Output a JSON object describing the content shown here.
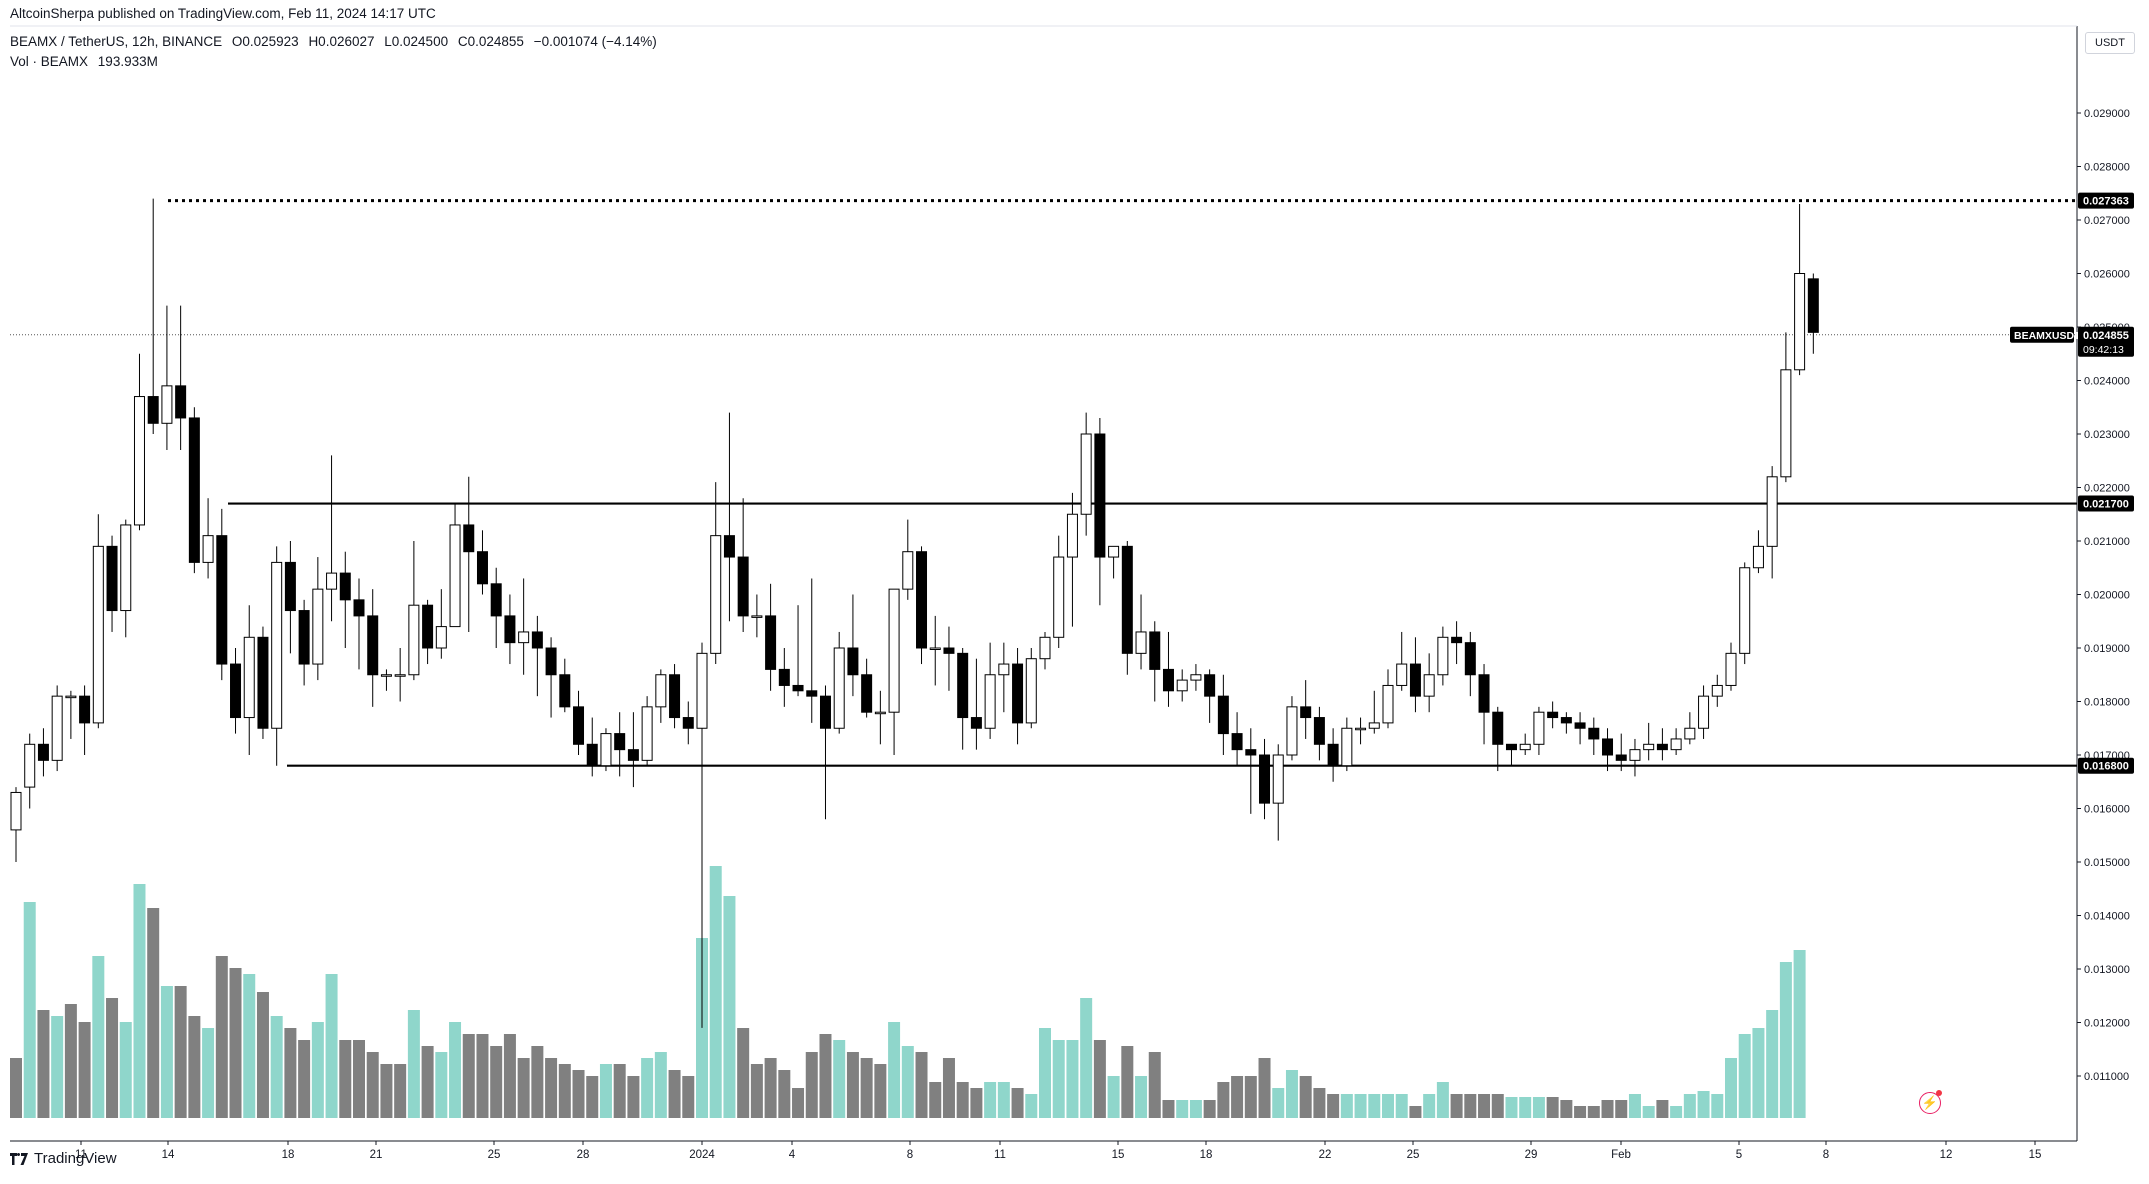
{
  "header": {
    "published_by": "AltcoinSherpa published on TradingView.com, Feb 11, 2024 14:17 UTC",
    "symbol": "BEAMX / TetherUS, 12h, BINANCE",
    "open": "O0.025923",
    "high": "H0.026027",
    "low": "L0.024500",
    "close": "C0.024855",
    "change": "−0.001074 (−4.14%)",
    "volume_label": "Vol · BEAMX",
    "volume_value": "193.933M"
  },
  "currency": "USDT",
  "brand": "TradingView",
  "icons": [
    "tradingview-logo-icon",
    "lightning-icon"
  ],
  "colors": {
    "up_body": "#ffffff",
    "down_body": "#000000",
    "wick": "#000000",
    "vol_up": "#8fd6cb",
    "vol_down": "#808080",
    "level_line": "#000000",
    "price_tag_bg": "#000000"
  },
  "chart_data": {
    "type": "candlestick",
    "title": "BEAMX / TetherUS, 12h, BINANCE",
    "y_ticks": [
      "0.029000",
      "0.028000",
      "0.027000",
      "0.026000",
      "0.025000",
      "0.024000",
      "0.023000",
      "0.022000",
      "0.021000",
      "0.020000",
      "0.019000",
      "0.018000",
      "0.017000",
      "0.016000",
      "0.015000",
      "0.014000",
      "0.013000",
      "0.012000",
      "0.011000"
    ],
    "x_ticks": [
      "11",
      "14",
      "18",
      "21",
      "25",
      "28",
      "2024",
      "4",
      "8",
      "11",
      "15",
      "18",
      "22",
      "25",
      "29",
      "Feb",
      "5",
      "8",
      "12",
      "15"
    ],
    "ylim": [
      0.01045,
      0.0304
    ],
    "levels": [
      {
        "label": "0.027363",
        "value": 0.027363,
        "style": "dotted"
      },
      {
        "label": "0.021700",
        "value": 0.0217,
        "style": "solid"
      },
      {
        "label": "0.016800",
        "value": 0.0168,
        "style": "solid"
      }
    ],
    "last_price": {
      "symbol": "BEAMXUSDT",
      "price": "0.024855",
      "countdown": "09:42:13",
      "value": 0.024855
    },
    "candles": [
      [
        0.0156,
        0.0163,
        0.015,
        0.0164,
        1.0
      ],
      [
        0.0164,
        0.0172,
        0.016,
        0.0174,
        3.6
      ],
      [
        0.0172,
        0.0169,
        0.0166,
        0.0175,
        1.8
      ],
      [
        0.0169,
        0.0181,
        0.0167,
        0.0183,
        1.7
      ],
      [
        0.0181,
        0.0181,
        0.0173,
        0.0182,
        1.9
      ],
      [
        0.0181,
        0.0176,
        0.017,
        0.0183,
        1.6
      ],
      [
        0.0176,
        0.0209,
        0.0175,
        0.0215,
        2.7
      ],
      [
        0.0209,
        0.0197,
        0.0193,
        0.0211,
        2.0
      ],
      [
        0.0197,
        0.0213,
        0.0192,
        0.0214,
        1.6
      ],
      [
        0.0213,
        0.0237,
        0.0212,
        0.0245,
        3.9
      ],
      [
        0.0237,
        0.0232,
        0.023,
        0.0274,
        3.5
      ],
      [
        0.0232,
        0.0239,
        0.0227,
        0.0254,
        2.2
      ],
      [
        0.0239,
        0.0233,
        0.0227,
        0.0254,
        2.2
      ],
      [
        0.0233,
        0.0206,
        0.0204,
        0.0235,
        1.7
      ],
      [
        0.0206,
        0.0211,
        0.0203,
        0.0218,
        1.5
      ],
      [
        0.0211,
        0.0187,
        0.0184,
        0.0216,
        2.7
      ],
      [
        0.0187,
        0.0177,
        0.0174,
        0.019,
        2.5
      ],
      [
        0.0177,
        0.0192,
        0.017,
        0.0198,
        2.4
      ],
      [
        0.0192,
        0.0175,
        0.0173,
        0.0194,
        2.1
      ],
      [
        0.0175,
        0.0206,
        0.0168,
        0.0209,
        1.7
      ],
      [
        0.0206,
        0.0197,
        0.0189,
        0.021,
        1.5
      ],
      [
        0.0197,
        0.0187,
        0.0183,
        0.0199,
        1.3
      ],
      [
        0.0187,
        0.0201,
        0.0184,
        0.0207,
        1.6
      ],
      [
        0.0201,
        0.0204,
        0.0195,
        0.0226,
        2.4
      ],
      [
        0.0204,
        0.0199,
        0.019,
        0.0208,
        1.3
      ],
      [
        0.0199,
        0.0196,
        0.0186,
        0.0203,
        1.3
      ],
      [
        0.0196,
        0.0185,
        0.0179,
        0.0201,
        1.1
      ],
      [
        0.0185,
        0.0185,
        0.0182,
        0.0186,
        0.9
      ],
      [
        0.0185,
        0.0185,
        0.018,
        0.019,
        0.9
      ],
      [
        0.0185,
        0.0198,
        0.0184,
        0.021,
        1.8
      ],
      [
        0.0198,
        0.019,
        0.0187,
        0.0199,
        1.2
      ],
      [
        0.019,
        0.0194,
        0.0188,
        0.0201,
        1.1
      ],
      [
        0.0194,
        0.0213,
        0.0194,
        0.0217,
        1.6
      ],
      [
        0.0213,
        0.0208,
        0.0193,
        0.0222,
        1.4
      ],
      [
        0.0208,
        0.0202,
        0.02,
        0.0212,
        1.4
      ],
      [
        0.0202,
        0.0196,
        0.019,
        0.0205,
        1.2
      ],
      [
        0.0196,
        0.0191,
        0.0187,
        0.02,
        1.4
      ],
      [
        0.0191,
        0.0193,
        0.0185,
        0.0203,
        1.0
      ],
      [
        0.0193,
        0.019,
        0.0181,
        0.0196,
        1.2
      ],
      [
        0.019,
        0.0185,
        0.0177,
        0.0192,
        1.0
      ],
      [
        0.0185,
        0.0179,
        0.0178,
        0.0188,
        0.9
      ],
      [
        0.0179,
        0.0172,
        0.017,
        0.0182,
        0.8
      ],
      [
        0.0172,
        0.0168,
        0.0166,
        0.0177,
        0.7
      ],
      [
        0.0168,
        0.0174,
        0.0167,
        0.0175,
        0.9
      ],
      [
        0.0174,
        0.0171,
        0.0166,
        0.0178,
        0.9
      ],
      [
        0.0171,
        0.0169,
        0.0164,
        0.0178,
        0.7
      ],
      [
        0.0169,
        0.0179,
        0.0168,
        0.0181,
        1.0
      ],
      [
        0.0179,
        0.0185,
        0.0176,
        0.0186,
        1.1
      ],
      [
        0.0185,
        0.0177,
        0.0175,
        0.0187,
        0.8
      ],
      [
        0.0177,
        0.0175,
        0.0172,
        0.018,
        0.7
      ],
      [
        0.0175,
        0.0189,
        0.0119,
        0.0191,
        3.0
      ],
      [
        0.0189,
        0.0211,
        0.0187,
        0.0221,
        4.2
      ],
      [
        0.0211,
        0.0207,
        0.0195,
        0.0234,
        3.7
      ],
      [
        0.0207,
        0.0196,
        0.0193,
        0.0218,
        1.5
      ],
      [
        0.0196,
        0.0196,
        0.0192,
        0.02,
        0.9
      ],
      [
        0.0196,
        0.0186,
        0.0182,
        0.0202,
        1.0
      ],
      [
        0.0186,
        0.0183,
        0.0179,
        0.019,
        0.8
      ],
      [
        0.0183,
        0.0182,
        0.0181,
        0.0198,
        0.5
      ],
      [
        0.0182,
        0.0181,
        0.0176,
        0.0203,
        1.1
      ],
      [
        0.0181,
        0.0175,
        0.0158,
        0.0183,
        1.4
      ],
      [
        0.0175,
        0.019,
        0.0174,
        0.0193,
        1.3
      ],
      [
        0.019,
        0.0185,
        0.0181,
        0.02,
        1.1
      ],
      [
        0.0185,
        0.0178,
        0.0177,
        0.0188,
        1.0
      ],
      [
        0.0178,
        0.0178,
        0.0172,
        0.0182,
        0.9
      ],
      [
        0.0178,
        0.0201,
        0.017,
        0.0201,
        1.6
      ],
      [
        0.0201,
        0.0208,
        0.0199,
        0.0214,
        1.2
      ],
      [
        0.0208,
        0.019,
        0.0187,
        0.0209,
        1.1
      ],
      [
        0.019,
        0.019,
        0.0183,
        0.0196,
        0.6
      ],
      [
        0.019,
        0.0189,
        0.0182,
        0.0194,
        1.0
      ],
      [
        0.0189,
        0.0177,
        0.0171,
        0.019,
        0.6
      ],
      [
        0.0177,
        0.0175,
        0.0171,
        0.0188,
        0.5
      ],
      [
        0.0175,
        0.0185,
        0.0173,
        0.0191,
        0.6
      ],
      [
        0.0185,
        0.0187,
        0.0178,
        0.0191,
        0.6
      ],
      [
        0.0187,
        0.0176,
        0.0172,
        0.019,
        0.5
      ],
      [
        0.0176,
        0.0188,
        0.0175,
        0.019,
        0.4
      ],
      [
        0.0188,
        0.0192,
        0.0186,
        0.0193,
        1.5
      ],
      [
        0.0192,
        0.0207,
        0.019,
        0.0211,
        1.3
      ],
      [
        0.0207,
        0.0215,
        0.0194,
        0.0219,
        1.3
      ],
      [
        0.0215,
        0.023,
        0.0211,
        0.0234,
        2.0
      ],
      [
        0.023,
        0.0207,
        0.0198,
        0.0233,
        1.3
      ],
      [
        0.0207,
        0.0209,
        0.0203,
        0.0209,
        0.7
      ],
      [
        0.0209,
        0.0189,
        0.0185,
        0.021,
        1.2
      ],
      [
        0.0189,
        0.0193,
        0.0186,
        0.02,
        0.7
      ],
      [
        0.0193,
        0.0186,
        0.018,
        0.0195,
        1.1
      ],
      [
        0.0186,
        0.0182,
        0.0179,
        0.0193,
        0.3
      ],
      [
        0.0182,
        0.0184,
        0.018,
        0.0186,
        0.3
      ],
      [
        0.0184,
        0.0185,
        0.0182,
        0.0187,
        0.3
      ],
      [
        0.0185,
        0.0181,
        0.0176,
        0.0186,
        0.3
      ],
      [
        0.0181,
        0.0174,
        0.017,
        0.0185,
        0.6
      ],
      [
        0.0174,
        0.0171,
        0.0168,
        0.0178,
        0.7
      ],
      [
        0.0171,
        0.017,
        0.0159,
        0.0175,
        0.7
      ],
      [
        0.017,
        0.0161,
        0.0158,
        0.0173,
        1.0
      ],
      [
        0.0161,
        0.017,
        0.0154,
        0.0172,
        0.5
      ],
      [
        0.017,
        0.0179,
        0.0169,
        0.0181,
        0.8
      ],
      [
        0.0179,
        0.0177,
        0.0173,
        0.0184,
        0.7
      ],
      [
        0.0177,
        0.0172,
        0.0169,
        0.0179,
        0.5
      ],
      [
        0.0172,
        0.0168,
        0.0165,
        0.0175,
        0.4
      ],
      [
        0.0168,
        0.0175,
        0.0167,
        0.0177,
        0.4
      ],
      [
        0.0175,
        0.0175,
        0.0172,
        0.0177,
        0.4
      ],
      [
        0.0175,
        0.0176,
        0.0174,
        0.0182,
        0.4
      ],
      [
        0.0176,
        0.0183,
        0.0175,
        0.0186,
        0.4
      ],
      [
        0.0183,
        0.0187,
        0.0182,
        0.0193,
        0.4
      ],
      [
        0.0187,
        0.0181,
        0.0178,
        0.0192,
        0.2
      ],
      [
        0.0181,
        0.0185,
        0.0178,
        0.0189,
        0.4
      ],
      [
        0.0185,
        0.0192,
        0.0183,
        0.0194,
        0.6
      ],
      [
        0.0192,
        0.0191,
        0.0187,
        0.0195,
        0.4
      ],
      [
        0.0191,
        0.0185,
        0.0181,
        0.0193,
        0.4
      ],
      [
        0.0185,
        0.0178,
        0.0172,
        0.0187,
        0.4
      ],
      [
        0.0178,
        0.0172,
        0.0167,
        0.0179,
        0.4
      ],
      [
        0.0172,
        0.0171,
        0.0168,
        0.0172,
        0.35
      ],
      [
        0.0171,
        0.0172,
        0.017,
        0.0174,
        0.35
      ],
      [
        0.0172,
        0.0178,
        0.017,
        0.0179,
        0.35
      ],
      [
        0.0178,
        0.0177,
        0.0175,
        0.018,
        0.35
      ],
      [
        0.0177,
        0.0176,
        0.0174,
        0.0178,
        0.3
      ],
      [
        0.0176,
        0.0175,
        0.0172,
        0.0178,
        0.2
      ],
      [
        0.0175,
        0.0173,
        0.017,
        0.0177,
        0.2
      ],
      [
        0.0173,
        0.017,
        0.0167,
        0.0175,
        0.3
      ],
      [
        0.017,
        0.0169,
        0.0167,
        0.0174,
        0.3
      ],
      [
        0.0169,
        0.0171,
        0.0166,
        0.0173,
        0.4
      ],
      [
        0.0171,
        0.0172,
        0.0169,
        0.0176,
        0.2
      ],
      [
        0.0172,
        0.0171,
        0.0169,
        0.0175,
        0.3
      ],
      [
        0.0171,
        0.0173,
        0.017,
        0.0175,
        0.2
      ],
      [
        0.0173,
        0.0175,
        0.0172,
        0.0178,
        0.4
      ],
      [
        0.0175,
        0.0181,
        0.0173,
        0.0183,
        0.45
      ],
      [
        0.0181,
        0.0183,
        0.0179,
        0.0185,
        0.4
      ],
      [
        0.0183,
        0.0189,
        0.0182,
        0.0191,
        1.0
      ],
      [
        0.0189,
        0.0205,
        0.0187,
        0.0206,
        1.4
      ],
      [
        0.0205,
        0.0209,
        0.0204,
        0.0212,
        1.5
      ],
      [
        0.0209,
        0.0222,
        0.0203,
        0.0224,
        1.8
      ],
      [
        0.0222,
        0.0242,
        0.0221,
        0.0249,
        2.6
      ],
      [
        0.0242,
        0.026,
        0.0241,
        0.0273,
        2.8
      ],
      [
        0.0259,
        0.0249,
        0.0245,
        0.026,
        0.0
      ]
    ],
    "volume_up": [
      0,
      1,
      0,
      1,
      0,
      0,
      1,
      0,
      1,
      1,
      0,
      1,
      0,
      0,
      1,
      0,
      0,
      1,
      0,
      1,
      0,
      0,
      1,
      1,
      0,
      0,
      0,
      0,
      0,
      1,
      0,
      1,
      1,
      0,
      0,
      0,
      0,
      0,
      0,
      0,
      0,
      0,
      0,
      1,
      0,
      0,
      1,
      1,
      0,
      0,
      1,
      1,
      1,
      0,
      0,
      0,
      0,
      0,
      0,
      0,
      1,
      0,
      0,
      0,
      1,
      1,
      0,
      0,
      0,
      0,
      0,
      1,
      1,
      0,
      1,
      1,
      1,
      1,
      1,
      0,
      1,
      0,
      1,
      0,
      0,
      1,
      1,
      0,
      0,
      0,
      0,
      0,
      1,
      1,
      0,
      0,
      0,
      1,
      1,
      1,
      1,
      1,
      0,
      1,
      1,
      0,
      0,
      0,
      0,
      1,
      1,
      1,
      0,
      0,
      0,
      0,
      0,
      0,
      1,
      1,
      0,
      1,
      1,
      1,
      1,
      1,
      1,
      1,
      1,
      1,
      1,
      0
    ]
  }
}
